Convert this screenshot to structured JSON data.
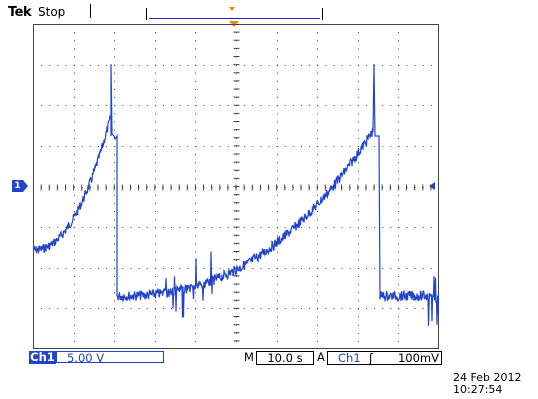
{
  "header": {
    "brand": "Tek",
    "run_status": "Stop"
  },
  "screen": {
    "divisions_x": 10,
    "divisions_y": 8,
    "trace_color": "#2244cc",
    "grid_color": "#444444",
    "trigger_marker_color": "#ee8800",
    "channel_marker_label": "1"
  },
  "footer": {
    "channel_label": "Ch1",
    "volts_per_div": "5.00 V",
    "horizontal_label": "M",
    "time_per_div": "10.0 s",
    "trigger_label": "A",
    "trigger_source": "Ch1",
    "trigger_slope_symbol": "ʃ",
    "trigger_level": "100mV"
  },
  "timestamp": {
    "date": "24 Feb  2012",
    "time": "10:27:54"
  }
}
